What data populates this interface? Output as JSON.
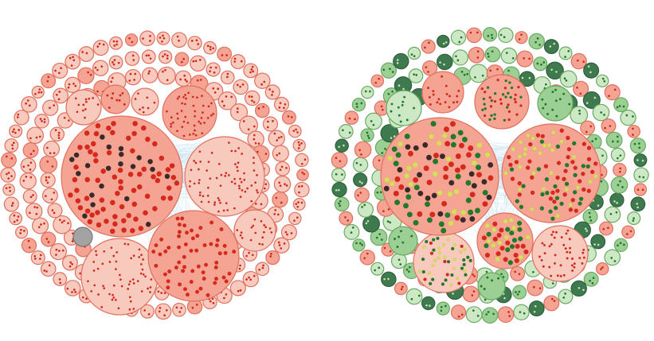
{
  "colors": {
    "background": "#ffffff",
    "edges": "#9fd0e6",
    "red_fill_light": "#f8c9bd",
    "red_fill_mid": "#f5a493",
    "red_stroke": "#e0705e",
    "red_dot": "#d8281c",
    "green_fill_light": "#cde8c5",
    "green_fill_mid": "#9ccf93",
    "green_fill_dark": "#3f7a4f",
    "green_stroke": "#6aaa63",
    "green_dot": "#1f7a2a",
    "yellow_dot": "#d9dd5a",
    "gray_fill": "#a3a3a3",
    "image_dot": "#3a2a2a"
  },
  "diagrams": [
    {
      "id": "left",
      "palette": "red-only",
      "highlighted_nodes": "gray"
    },
    {
      "id": "right",
      "palette": "red-green",
      "highlighted_nodes": "yellow"
    }
  ]
}
